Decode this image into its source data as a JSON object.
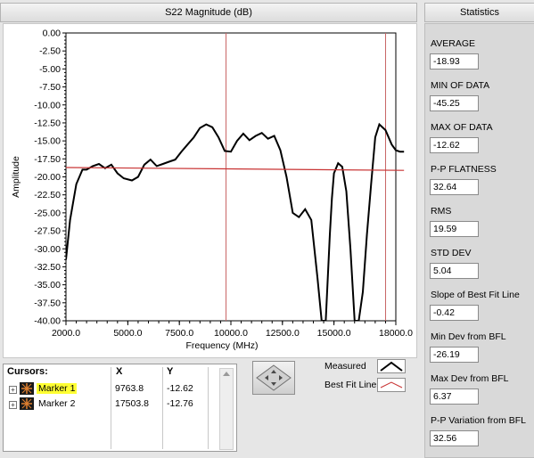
{
  "chart": {
    "title": "S22 Magnitude (dB)"
  },
  "statistics": {
    "title": "Statistics",
    "items": [
      {
        "label": "AVERAGE",
        "value": "-18.93"
      },
      {
        "label": "MIN OF DATA",
        "value": "-45.25"
      },
      {
        "label": "MAX OF DATA",
        "value": "-12.62"
      },
      {
        "label": "P-P FLATNESS",
        "value": "32.64"
      },
      {
        "label": "RMS",
        "value": "19.59"
      },
      {
        "label": "STD DEV",
        "value": "5.04"
      },
      {
        "label": "Slope of Best Fit Line",
        "value": "-0.42"
      },
      {
        "label": "Min Dev from BFL",
        "value": "-26.19"
      },
      {
        "label": "Max Dev from BFL",
        "value": "6.37"
      },
      {
        "label": "P-P Variation from BFL",
        "value": "32.56"
      }
    ]
  },
  "cursors": {
    "header": "Cursors:",
    "col_x": "X",
    "col_y": "Y",
    "rows": [
      {
        "name": "Marker 1",
        "x": "9763.8",
        "y": "-12.62"
      },
      {
        "name": "Marker 2",
        "x": "17503.8",
        "y": "-12.76"
      }
    ]
  },
  "legend": {
    "measured": "Measured",
    "best_fit": "Best Fit Line"
  },
  "colors": {
    "measured": "#000000",
    "best_fit": "#c83232",
    "cursor": "#c86464",
    "marker1_highlight": "#ffff33"
  },
  "chart_data": {
    "type": "line",
    "title": "S22 Magnitude (dB)",
    "xlabel": "Frequency (MHz)",
    "ylabel": "Amplitude",
    "xlim": [
      2000,
      18000
    ],
    "ylim": [
      -40,
      0
    ],
    "x_ticks": [
      "2000.0",
      "5000.0",
      "7500.0",
      "10000.0",
      "12500.0",
      "15000.0",
      "18000.0"
    ],
    "x_tick_values": [
      2000,
      5000,
      7500,
      10000,
      12500,
      15000,
      18000
    ],
    "y_ticks": [
      "0.00",
      "-2.50",
      "-5.00",
      "-7.50",
      "-10.00",
      "-12.50",
      "-15.00",
      "-17.50",
      "-20.00",
      "-22.50",
      "-25.00",
      "-27.50",
      "-30.00",
      "-32.50",
      "-35.00",
      "-37.50",
      "-40.00"
    ],
    "y_tick_values": [
      0,
      -2.5,
      -5,
      -7.5,
      -10,
      -12.5,
      -15,
      -17.5,
      -20,
      -22.5,
      -25,
      -27.5,
      -30,
      -32.5,
      -35,
      -37.5,
      -40
    ],
    "grid": false,
    "cursors_x": [
      9763.8,
      17503.8
    ],
    "series": [
      {
        "name": "Measured",
        "x": [
          2000,
          2200,
          2500,
          2800,
          3000,
          3300,
          3600,
          3900,
          4200,
          4500,
          4800,
          5200,
          5500,
          5800,
          6100,
          6400,
          6700,
          7000,
          7300,
          7600,
          7900,
          8200,
          8500,
          8800,
          9100,
          9400,
          9700,
          10000,
          10300,
          10600,
          10900,
          11200,
          11500,
          11800,
          12100,
          12400,
          12700,
          13000,
          13300,
          13600,
          13900,
          14200,
          14400,
          14600,
          14800,
          14900,
          15000,
          15200,
          15400,
          15600,
          15800,
          16000,
          16200,
          16400,
          16600,
          16800,
          17000,
          17200,
          17500,
          17800,
          18000,
          18200,
          18400
        ],
        "y": [
          -31.5,
          -26,
          -21,
          -19,
          -19,
          -18.5,
          -18.2,
          -18.8,
          -18.3,
          -19.5,
          -20.2,
          -20.5,
          -20,
          -18.3,
          -17.6,
          -18.5,
          -18.2,
          -17.9,
          -17.6,
          -16.5,
          -15.5,
          -14.5,
          -13.2,
          -12.7,
          -13.1,
          -14.5,
          -16.4,
          -16.5,
          -15.0,
          -14.0,
          -14.9,
          -14.3,
          -13.9,
          -14.7,
          -14.3,
          -16.3,
          -20,
          -25,
          -25.6,
          -24.5,
          -26,
          -34,
          -40,
          -40,
          -28,
          -23,
          -19.5,
          -18.1,
          -18.6,
          -22,
          -30,
          -40,
          -40,
          -36,
          -28,
          -21,
          -14.5,
          -12.7,
          -13.5,
          -15.5,
          -16.3,
          -16.5,
          -16.5
        ]
      },
      {
        "name": "Best Fit Line",
        "x": [
          2000,
          18400
        ],
        "y": [
          -18.7,
          -19.1
        ]
      }
    ]
  }
}
